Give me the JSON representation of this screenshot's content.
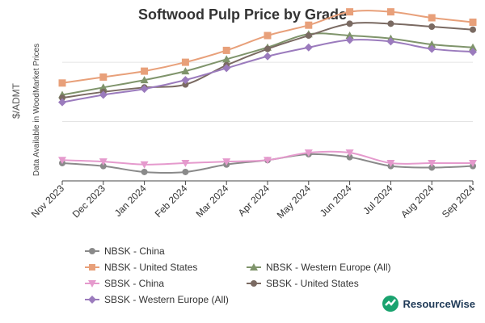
{
  "chart_data": {
    "type": "line",
    "title": "Softwood Pulp Price by Grade",
    "ylabel": "$/ADMT",
    "ylabel_note": "Data Available in WoodMarket Prices",
    "xlabel": "",
    "categories": [
      "Nov 2023",
      "Dec 2023",
      "Jan 2024",
      "Feb 2024",
      "Mar 2024",
      "Apr 2024",
      "May 2024",
      "Jun 2024",
      "Jul 2024",
      "Aug 2024",
      "Sep 2024"
    ],
    "ylim": [
      0,
      110
    ],
    "grid": true,
    "legend_position": "bottom",
    "series": [
      {
        "name": "NBSK - China",
        "color": "#8a8a8a",
        "marker": "circle",
        "values": [
          12,
          10,
          6,
          6,
          11,
          14,
          18,
          16,
          10,
          9,
          10
        ]
      },
      {
        "name": "NBSK - United States",
        "color": "#e8a07a",
        "marker": "square",
        "values": [
          66,
          70,
          74,
          80,
          88,
          98,
          105,
          114,
          114,
          110,
          107
        ]
      },
      {
        "name": "NBSK - Western Europe (All)",
        "color": "#7f946b",
        "marker": "triangle",
        "values": [
          58,
          63,
          68,
          74,
          82,
          90,
          99,
          98,
          96,
          92,
          90
        ]
      },
      {
        "name": "SBSK - China",
        "color": "#e59acd",
        "marker": "triangle-down",
        "values": [
          14,
          13,
          11,
          12,
          13,
          14,
          19,
          19,
          12,
          12,
          12
        ]
      },
      {
        "name": "SBSK - United States",
        "color": "#7a6a62",
        "marker": "circle",
        "values": [
          56,
          60,
          63,
          65,
          78,
          89,
          98,
          106,
          106,
          104,
          102
        ]
      },
      {
        "name": "SBSK - Western Europe (All)",
        "color": "#9b7bbd",
        "marker": "diamond",
        "values": [
          53,
          58,
          62,
          68,
          76,
          84,
          90,
          95,
          94,
          89,
          87
        ]
      }
    ]
  },
  "brand": {
    "name": "ResourceWise"
  }
}
